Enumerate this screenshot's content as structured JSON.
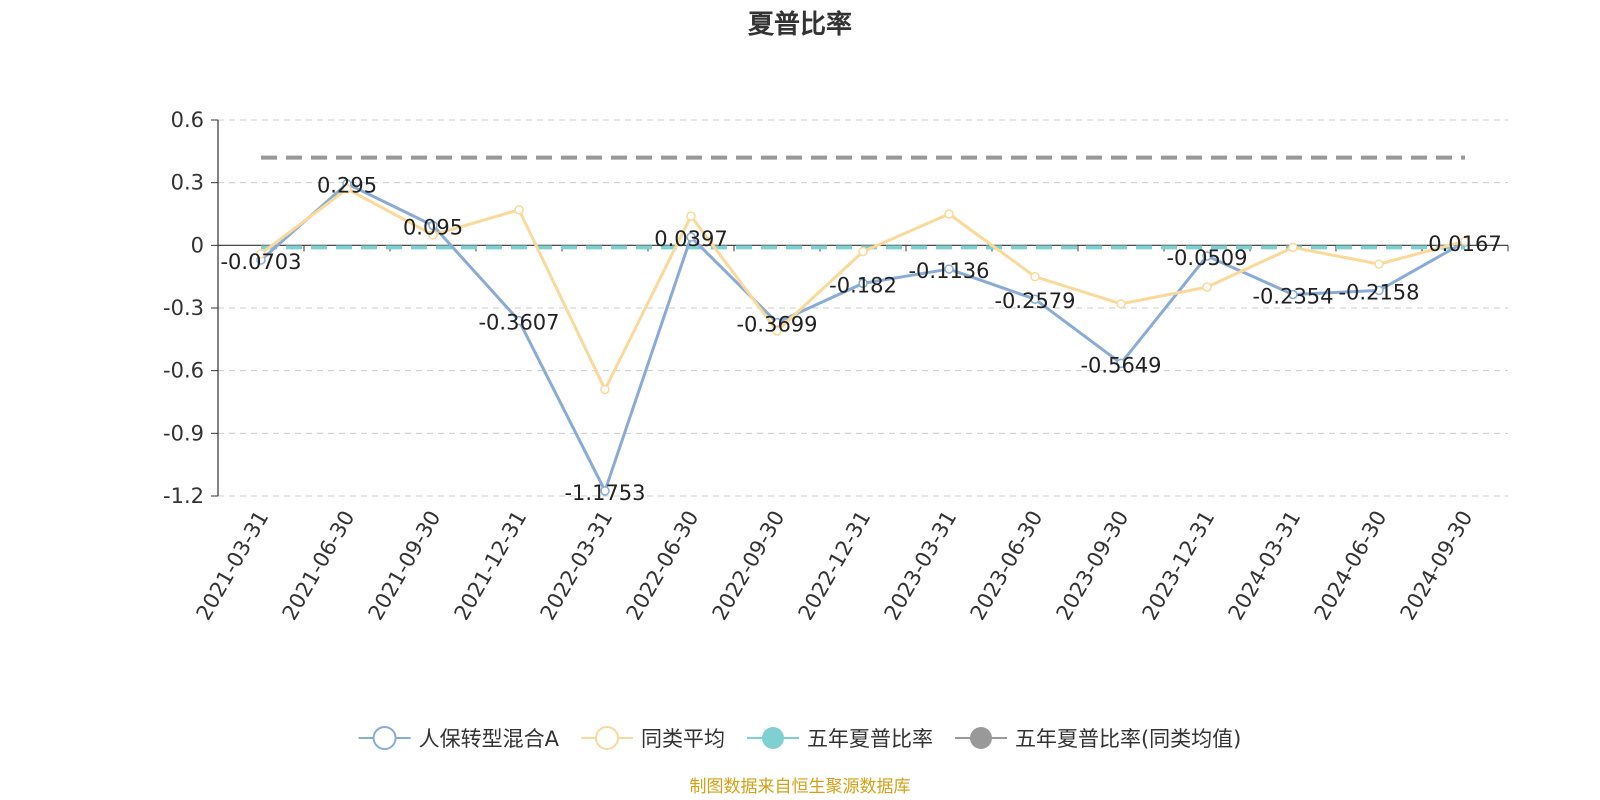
{
  "chart_data": {
    "type": "line",
    "title": "夏普比率",
    "xlabel": "",
    "ylabel": "",
    "categories": [
      "2021-03-31",
      "2021-06-30",
      "2021-09-30",
      "2021-12-31",
      "2022-03-31",
      "2022-06-30",
      "2022-09-30",
      "2022-12-31",
      "2023-03-31",
      "2023-06-30",
      "2023-09-30",
      "2023-12-31",
      "2024-03-31",
      "2024-06-30",
      "2024-09-30"
    ],
    "ylim": [
      -1.2,
      0.6
    ],
    "yticks": [
      0.6,
      0.3,
      0,
      -0.3,
      -0.6,
      -0.9,
      -1.2
    ],
    "ytick_labels": [
      "0.6",
      "0.3",
      "0",
      "-0.3",
      "-0.6",
      "-0.9",
      "-1.2"
    ],
    "grid": true,
    "legend_position": "bottom",
    "series": [
      {
        "name": "人保转型混合A",
        "color": "#8aabd6",
        "values": [
          -0.0703,
          0.295,
          0.095,
          -0.3607,
          -1.1753,
          0.0397,
          -0.3699,
          -0.182,
          -0.1136,
          -0.2579,
          -0.5649,
          -0.0509,
          -0.2354,
          -0.2158,
          0.0167
        ],
        "labels": [
          "-0.0703",
          "0.295",
          "0.095",
          "-0.3607",
          "-1.1753",
          "0.0397",
          "-0.3699",
          "-0.182",
          "-0.1136",
          "-0.2579",
          "-0.5649",
          "-0.0509",
          "-0.2354",
          "-0.2158",
          "0.0167"
        ]
      },
      {
        "name": "同类平均",
        "color": "#fad99a",
        "values": [
          -0.04,
          0.27,
          0.05,
          0.17,
          -0.69,
          0.14,
          -0.41,
          -0.03,
          0.15,
          -0.15,
          -0.28,
          -0.2,
          -0.01,
          -0.09,
          0.02
        ]
      },
      {
        "name": "五年夏普比率",
        "color": "#7fd0d0",
        "constant": -0.01
      },
      {
        "name": "五年夏普比率(同类均值)",
        "color": "#999999",
        "constant": 0.42
      }
    ]
  },
  "legend": {
    "items": [
      {
        "label": "人保转型混合A",
        "color": "#8aabd6",
        "style": "hollow"
      },
      {
        "label": "同类平均",
        "color": "#fad99a",
        "style": "hollow"
      },
      {
        "label": "五年夏普比率",
        "color": "#7fd0d0",
        "style": "filled"
      },
      {
        "label": "五年夏普比率(同类均值)",
        "color": "#999999",
        "style": "filled"
      }
    ]
  },
  "source": {
    "text": "制图数据来自恒生聚源数据库",
    "color": "#d4a017"
  }
}
